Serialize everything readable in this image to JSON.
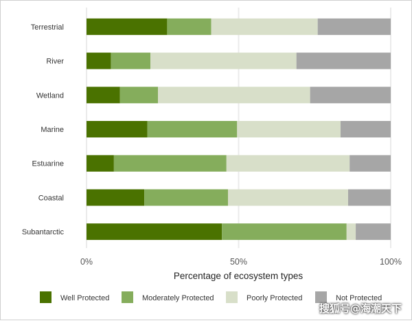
{
  "chart_data": {
    "type": "bar",
    "orientation": "horizontal",
    "stacked": true,
    "title": "",
    "xlabel": "Percentage of ecosystem types",
    "ylabel": "",
    "xlim": [
      0,
      100
    ],
    "x_ticks": [
      "0%",
      "50%",
      "100%"
    ],
    "x_tick_values": [
      0,
      50,
      100
    ],
    "grid": true,
    "legend_position": "bottom",
    "categories": [
      "Terrestrial",
      "River",
      "Wetland",
      "Marine",
      "Estuarine",
      "Coastal",
      "Subantarctic"
    ],
    "series": [
      {
        "name": "Well Protected",
        "color": "#4a7200",
        "values": [
          26.5,
          8,
          11,
          20,
          9,
          19,
          44.5
        ]
      },
      {
        "name": "Moderately Protected",
        "color": "#85ad5c",
        "values": [
          14.5,
          13,
          12.5,
          29.5,
          37,
          27.5,
          41
        ]
      },
      {
        "name": "Poorly Protected",
        "color": "#d8dfc9",
        "values": [
          35,
          48,
          50,
          34,
          40.5,
          39.5,
          3
        ]
      },
      {
        "name": "Not Protected",
        "color": "#a6a6a6",
        "values": [
          24,
          31,
          26.5,
          16.5,
          13.5,
          14,
          11.5
        ]
      }
    ]
  },
  "watermark": "搜狐号@海潮天下"
}
